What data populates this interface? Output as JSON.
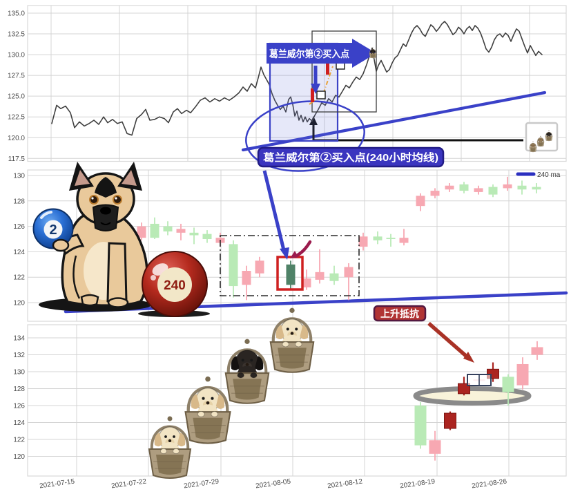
{
  "chart_data": {
    "type": "candlestick",
    "title": "",
    "x_tick_labels": [
      "2021-07-15",
      "2021-07-22",
      "2021-07-29",
      "2021-08-05",
      "2021-08-12",
      "2021-08-19",
      "2021-08-26"
    ],
    "panels": [
      {
        "id": "hourly_price_line",
        "type": "line",
        "y_tick_labels": [
          "135.0",
          "132.5",
          "130.0",
          "127.5",
          "125.0",
          "122.5",
          "120.0",
          "117.5"
        ],
        "series_name": "price",
        "points": [
          [
            75,
            121.7
          ],
          [
            82,
            123.9
          ],
          [
            88,
            123.5
          ],
          [
            95,
            123.8
          ],
          [
            102,
            123.0
          ],
          [
            108,
            121.2
          ],
          [
            115,
            121.9
          ],
          [
            122,
            121.4
          ],
          [
            129,
            121.7
          ],
          [
            136,
            122.1
          ],
          [
            143,
            121.6
          ],
          [
            150,
            122.5
          ],
          [
            156,
            121.8
          ],
          [
            163,
            122.2
          ],
          [
            170,
            121.7
          ],
          [
            177,
            121.9
          ],
          [
            184,
            120.5
          ],
          [
            191,
            120.3
          ],
          [
            198,
            122.3
          ],
          [
            205,
            122.8
          ],
          [
            211,
            123.4
          ],
          [
            217,
            122.1
          ],
          [
            224,
            122.2
          ],
          [
            231,
            122.5
          ],
          [
            238,
            122.3
          ],
          [
            244,
            121.8
          ],
          [
            251,
            123.1
          ],
          [
            257,
            123.5
          ],
          [
            263,
            122.9
          ],
          [
            270,
            123.3
          ],
          [
            276,
            123.0
          ],
          [
            283,
            123.7
          ],
          [
            290,
            124.5
          ],
          [
            297,
            124.8
          ],
          [
            304,
            124.3
          ],
          [
            311,
            124.7
          ],
          [
            318,
            124.4
          ],
          [
            325,
            124.8
          ],
          [
            332,
            124.5
          ],
          [
            339,
            124.9
          ],
          [
            346,
            125.4
          ],
          [
            352,
            126.1
          ],
          [
            358,
            125.6
          ],
          [
            364,
            126.5
          ],
          [
            370,
            126.0
          ],
          [
            374,
            127.2
          ],
          [
            378,
            128.5
          ],
          [
            382,
            127.6
          ],
          [
            386,
            127.0
          ],
          [
            390,
            126.4
          ],
          [
            394,
            125.3
          ],
          [
            398,
            124.5
          ],
          [
            402,
            123.9
          ],
          [
            406,
            123.4
          ],
          [
            410,
            123.8
          ],
          [
            414,
            123.1
          ],
          [
            418,
            124.6
          ],
          [
            421,
            124.9
          ],
          [
            424,
            124.0
          ],
          [
            427,
            122.6
          ],
          [
            430,
            123.2
          ],
          [
            433,
            122.1
          ],
          [
            436,
            122.7
          ],
          [
            439,
            121.9
          ],
          [
            442,
            122.5
          ],
          [
            445,
            121.9
          ],
          [
            448,
            122.3
          ],
          [
            452,
            122.0
          ],
          [
            456,
            122.7
          ],
          [
            461,
            123.4
          ],
          [
            466,
            124.2
          ],
          [
            471,
            123.9
          ],
          [
            476,
            124.7
          ],
          [
            481,
            124.3
          ],
          [
            486,
            125.1
          ],
          [
            491,
            124.9
          ],
          [
            496,
            125.6
          ],
          [
            501,
            126.3
          ],
          [
            506,
            126.0
          ],
          [
            511,
            126.7
          ],
          [
            516,
            127.3
          ],
          [
            521,
            127.0
          ],
          [
            526,
            127.7
          ],
          [
            531,
            128.8
          ],
          [
            536,
            130.1
          ],
          [
            539,
            130.8
          ],
          [
            542,
            129.4
          ],
          [
            545,
            128.0
          ],
          [
            548,
            128.7
          ],
          [
            552,
            129.3
          ],
          [
            556,
            128.6
          ],
          [
            560,
            127.9
          ],
          [
            564,
            128.2
          ],
          [
            568,
            129.0
          ],
          [
            572,
            129.6
          ],
          [
            576,
            129.9
          ],
          [
            580,
            130.6
          ],
          [
            584,
            131.3
          ],
          [
            588,
            131.0
          ],
          [
            592,
            131.8
          ],
          [
            596,
            132.6
          ],
          [
            600,
            133.2
          ],
          [
            604,
            133.5
          ],
          [
            608,
            133.1
          ],
          [
            612,
            132.5
          ],
          [
            616,
            132.2
          ],
          [
            620,
            132.9
          ],
          [
            624,
            133.6
          ],
          [
            628,
            133.3
          ],
          [
            632,
            132.8
          ],
          [
            636,
            133.2
          ],
          [
            640,
            133.7
          ],
          [
            644,
            134.0
          ],
          [
            648,
            133.6
          ],
          [
            652,
            133.0
          ],
          [
            656,
            132.4
          ],
          [
            660,
            132.7
          ],
          [
            664,
            133.3
          ],
          [
            668,
            133.0
          ],
          [
            672,
            132.5
          ],
          [
            676,
            133.1
          ],
          [
            680,
            133.4
          ],
          [
            684,
            132.9
          ],
          [
            688,
            133.5
          ],
          [
            692,
            133.2
          ],
          [
            696,
            132.6
          ],
          [
            700,
            131.7
          ],
          [
            704,
            130.7
          ],
          [
            708,
            130.3
          ],
          [
            712,
            130.9
          ],
          [
            716,
            131.8
          ],
          [
            720,
            132.3
          ],
          [
            724,
            132.5
          ],
          [
            728,
            132.1
          ],
          [
            732,
            132.6
          ],
          [
            736,
            132.3
          ],
          [
            740,
            131.6
          ],
          [
            744,
            132.4
          ],
          [
            748,
            133.1
          ],
          [
            752,
            132.8
          ],
          [
            756,
            131.9
          ],
          [
            760,
            131.0
          ],
          [
            764,
            130.2
          ],
          [
            768,
            131.1
          ],
          [
            772,
            130.5
          ],
          [
            776,
            129.9
          ],
          [
            780,
            130.4
          ],
          [
            785,
            130.0
          ]
        ]
      },
      {
        "id": "candles_240ma",
        "type": "candlestick",
        "y_tick_labels": [
          "130",
          "128",
          "126",
          "124",
          "122",
          "120"
        ],
        "legend": [
          "240 ma"
        ],
        "candles": [
          [
            205,
            126.0,
            126.3,
            124.9,
            125.1,
            "d"
          ],
          [
            224,
            125.1,
            126.7,
            125.0,
            126.2,
            "u"
          ],
          [
            243,
            125.6,
            126.4,
            125.3,
            126.0,
            "u"
          ],
          [
            262,
            125.8,
            126.2,
            124.9,
            125.5,
            "d"
          ],
          [
            281,
            125.3,
            125.9,
            124.6,
            125.5,
            "u"
          ],
          [
            300,
            125.0,
            125.7,
            124.7,
            125.4,
            "u"
          ],
          [
            319,
            125.1,
            125.5,
            124.4,
            124.7,
            "d"
          ],
          [
            338,
            121.3,
            124.9,
            120.4,
            124.6,
            "u"
          ],
          [
            357,
            122.5,
            122.9,
            120.2,
            121.4,
            "d"
          ],
          [
            376,
            123.3,
            123.6,
            122.0,
            122.3,
            "d"
          ],
          [
            421,
            121.4,
            123.3,
            121.1,
            123.0,
            "g"
          ],
          [
            444,
            121.9,
            122.6,
            121.0,
            121.2,
            "d"
          ],
          [
            463,
            122.4,
            124.2,
            121.5,
            121.8,
            "d"
          ],
          [
            484,
            121.7,
            122.9,
            121.4,
            122.3,
            "u"
          ],
          [
            505,
            122.8,
            123.1,
            120.2,
            122.0,
            "d"
          ],
          [
            526,
            125.2,
            125.5,
            124.1,
            124.4,
            "d"
          ],
          [
            547,
            124.9,
            125.6,
            124.6,
            125.2,
            "u"
          ],
          [
            566,
            125.0,
            125.4,
            124.4,
            125.1,
            "u"
          ],
          [
            585,
            125.1,
            125.8,
            124.5,
            124.7,
            "d"
          ],
          [
            609,
            128.4,
            128.6,
            127.2,
            127.6,
            "d"
          ],
          [
            630,
            128.8,
            129.0,
            128.2,
            128.4,
            "d"
          ],
          [
            651,
            129.2,
            129.4,
            128.7,
            128.9,
            "d"
          ],
          [
            672,
            128.8,
            129.5,
            128.6,
            129.3,
            "u"
          ],
          [
            693,
            129.0,
            129.2,
            128.5,
            128.7,
            "d"
          ],
          [
            714,
            128.5,
            129.3,
            128.3,
            129.1,
            "u"
          ],
          [
            735,
            129.3,
            129.9,
            128.8,
            129.0,
            "d"
          ],
          [
            756,
            128.9,
            129.6,
            128.5,
            129.2,
            "u"
          ],
          [
            777,
            128.9,
            129.4,
            128.6,
            129.1,
            "u"
          ]
        ]
      },
      {
        "id": "candles_marked",
        "type": "candlestick",
        "y_tick_labels": [
          "134",
          "132",
          "130",
          "128",
          "126",
          "124",
          "122",
          "120"
        ],
        "candles": [
          [
            609,
            121.3,
            126.4,
            120.9,
            126.0,
            "u"
          ],
          [
            630,
            121.9,
            123.0,
            119.5,
            120.3,
            "d"
          ],
          [
            652,
            125.1,
            125.3,
            123.1,
            123.3,
            "r"
          ],
          [
            672,
            128.6,
            129.4,
            127.2,
            127.4,
            "r"
          ],
          [
            694,
            128.9,
            129.3,
            128.7,
            129.1,
            "f"
          ],
          [
            714,
            130.3,
            131.1,
            128.8,
            129.2,
            "r"
          ],
          [
            736,
            127.6,
            129.7,
            126.0,
            129.4,
            "u"
          ],
          [
            757,
            130.9,
            131.7,
            127.9,
            128.4,
            "d"
          ],
          [
            778,
            132.9,
            133.6,
            131.4,
            132.0,
            "d"
          ]
        ]
      }
    ]
  },
  "annotations": {
    "buy_point_banner": "葛兰威尔第②买入点",
    "buy_point_label": "葛兰威尔第②买入点(240小时均线)",
    "resistance_label": "上升抵抗",
    "legend_label": "240 ma",
    "ball_blue_label": "2",
    "ball_red_label": "240"
  },
  "colors": {
    "accent_blue": "#3a41c8",
    "label_box_blue": "#3a35bf",
    "maroon_arrow": "#a93226",
    "resistance_red": "#b13434",
    "up_green": "#b9eab6",
    "down_pink": "#f7a8b2",
    "marked_dark_red": "#ab2420",
    "highlight_dark_green": "#4f8267",
    "ma_line_blue": "#2b2fc0",
    "price_line_gray": "#3f3f3f",
    "dish_gray": "#8a8a8a"
  }
}
